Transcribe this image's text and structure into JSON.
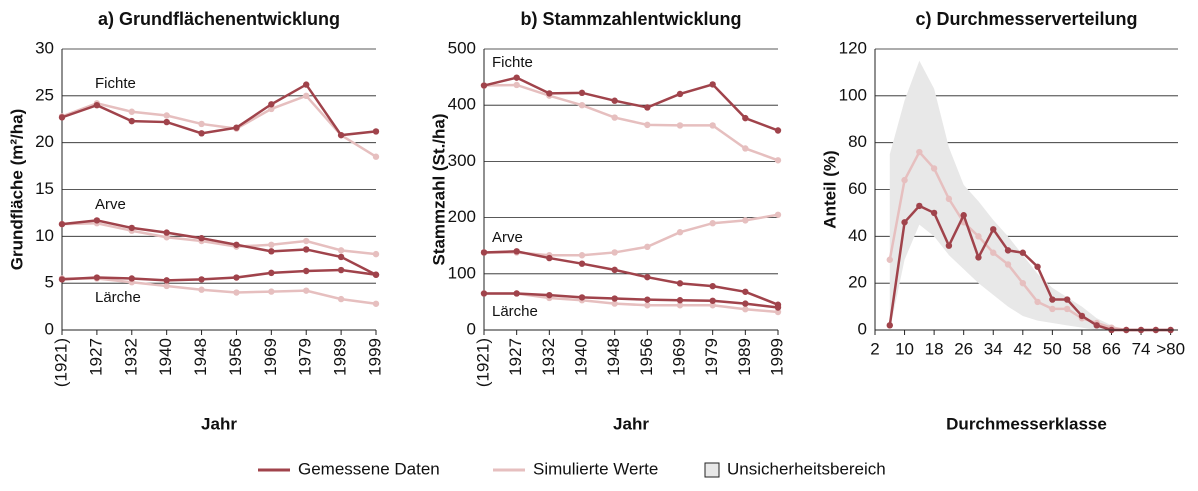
{
  "legend": {
    "measured": {
      "label": "Gemessene Daten",
      "color": "#a0434b"
    },
    "simulated": {
      "label": "Simulierte Werte",
      "color": "#e6bfbf"
    },
    "band": {
      "label": "Unsicherheitsbereich",
      "color": "#e8e8e8"
    }
  },
  "chart_data": [
    {
      "type": "line",
      "title": "a) Grundflächenentwicklung",
      "x_label": "Jahr",
      "y_label": "Grundfläche (m²/ha)",
      "categories": [
        "(1921)",
        "1927",
        "1932",
        "1940",
        "1948",
        "1956",
        "1969",
        "1979",
        "1989",
        "1999"
      ],
      "ylim": [
        0,
        30
      ],
      "yticks": [
        0,
        5,
        10,
        15,
        20,
        25,
        30
      ],
      "grid": true,
      "series": [
        {
          "name": "Fichte",
          "measured": [
            22.7,
            24.0,
            22.3,
            22.2,
            21.0,
            21.6,
            24.1,
            26.2,
            20.8,
            21.2
          ],
          "simulated": [
            22.8,
            24.2,
            23.3,
            22.9,
            22.0,
            21.5,
            23.6,
            25.0,
            20.8,
            18.5
          ]
        },
        {
          "name": "Arve",
          "measured": [
            11.3,
            11.7,
            10.9,
            10.4,
            9.8,
            9.1,
            8.4,
            8.6,
            7.8,
            5.9
          ],
          "simulated": [
            11.3,
            11.4,
            10.6,
            9.9,
            9.5,
            8.9,
            9.1,
            9.5,
            8.5,
            8.1
          ]
        },
        {
          "name": "Lärche",
          "measured": [
            5.4,
            5.6,
            5.5,
            5.3,
            5.4,
            5.6,
            6.1,
            6.3,
            6.4,
            5.9
          ],
          "simulated": [
            5.5,
            5.5,
            5.1,
            4.7,
            4.3,
            4.0,
            4.1,
            4.2,
            3.3,
            2.8
          ]
        }
      ]
    },
    {
      "type": "line",
      "title": "b) Stammzahlentwicklung",
      "x_label": "Jahr",
      "y_label": "Stammzahl (St./ha)",
      "categories": [
        "(1921)",
        "1927",
        "1932",
        "1940",
        "1948",
        "1956",
        "1969",
        "1979",
        "1989",
        "1999"
      ],
      "ylim": [
        0,
        500
      ],
      "yticks": [
        0,
        100,
        200,
        300,
        400,
        500
      ],
      "grid": true,
      "series": [
        {
          "name": "Fichte",
          "measured": [
            435,
            449,
            421,
            422,
            408,
            396,
            420,
            437,
            377,
            355
          ],
          "simulated": [
            435,
            436,
            417,
            400,
            378,
            365,
            364,
            364,
            323,
            302
          ]
        },
        {
          "name": "Arve",
          "measured": [
            138,
            140,
            128,
            118,
            107,
            94,
            83,
            78,
            68,
            45
          ],
          "simulated": [
            138,
            138,
            133,
            133,
            138,
            148,
            174,
            190,
            195,
            205
          ]
        },
        {
          "name": "Lärche",
          "measured": [
            65,
            65,
            62,
            58,
            56,
            54,
            53,
            52,
            47,
            40
          ],
          "simulated": [
            65,
            65,
            57,
            53,
            47,
            44,
            44,
            44,
            37,
            32
          ]
        }
      ]
    },
    {
      "type": "band-line",
      "title": "c) Durchmesserverteilung",
      "x_label": "Durchmesserklasse",
      "y_label": "Anteil (%)",
      "x": [
        6,
        10,
        14,
        18,
        22,
        26,
        30,
        34,
        38,
        42,
        46,
        50,
        54,
        58,
        62,
        66,
        70,
        74,
        78,
        82
      ],
      "xlim": [
        2,
        84
      ],
      "xticks": [
        2,
        10,
        18,
        26,
        34,
        42,
        50,
        58,
        66,
        74,
        {
          "value": 82,
          "label": ">80"
        }
      ],
      "ylim": [
        0,
        120
      ],
      "yticks": [
        0,
        20,
        40,
        60,
        80,
        100,
        120
      ],
      "grid": true,
      "measured": [
        2,
        46,
        53,
        50,
        36,
        49,
        31,
        43,
        34,
        33,
        27,
        13,
        13,
        6,
        2,
        0,
        0,
        0,
        0,
        0
      ],
      "simulated": [
        30,
        64,
        76,
        69,
        56,
        46,
        40,
        33,
        28,
        20,
        12,
        9,
        9,
        5,
        3,
        1,
        0,
        0,
        0,
        0
      ],
      "band": {
        "lower": [
          0,
          30,
          45,
          40,
          32,
          26,
          20,
          15,
          10,
          6,
          4,
          3,
          2,
          1,
          0,
          0,
          0,
          0,
          0,
          0
        ],
        "upper": [
          75,
          98,
          115,
          103,
          78,
          62,
          55,
          47,
          40,
          32,
          24,
          18,
          14,
          10,
          5,
          2,
          0,
          0,
          0,
          0
        ]
      }
    }
  ]
}
